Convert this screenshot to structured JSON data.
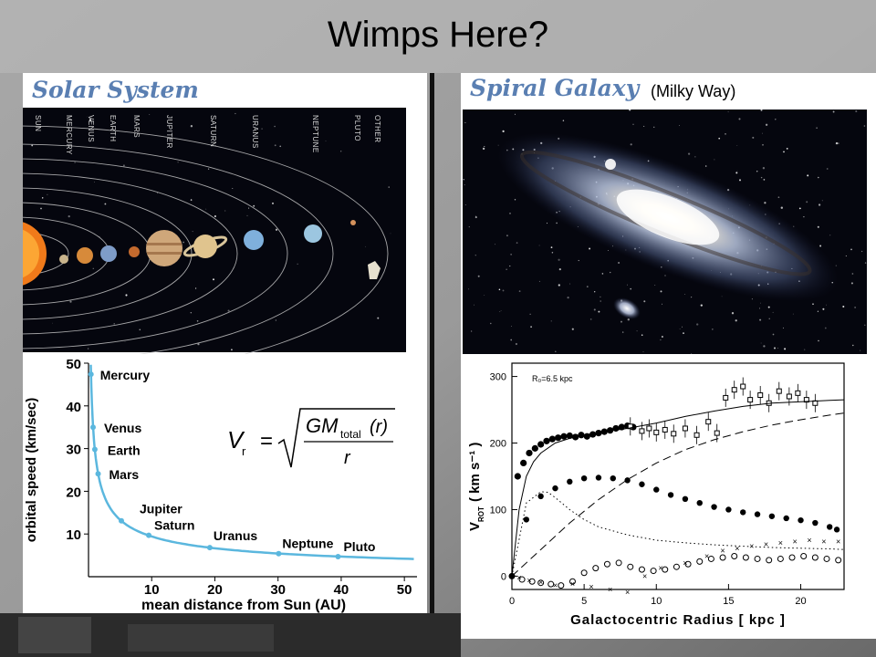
{
  "slide": {
    "title": "Wimps Here?"
  },
  "colors": {
    "accent": "#5a7fb2",
    "curve": "#5bb7de",
    "space": "#05060e"
  },
  "left": {
    "heading": "Solar System",
    "planet_labels": [
      "SUN",
      "MERCURY",
      "VENUS",
      "EARTH",
      "MARS",
      "JUPITER",
      "SATURN",
      "URANUS",
      "NEPTUNE",
      "PLUTO",
      "OTHER"
    ],
    "formula": {
      "v": "V",
      "sub_r": "r",
      "eq": "=",
      "gm": "GM",
      "total": "total",
      "arg": "(r)",
      "den": "r"
    }
  },
  "right": {
    "heading": "Spiral Galaxy",
    "subheading": "(Milky Way)"
  },
  "chart_data": [
    {
      "type": "line",
      "xlabel": "mean distance from Sun (AU)",
      "ylabel": "orbital speed (km/sec)",
      "xlim": [
        0,
        52
      ],
      "ylim": [
        0,
        50
      ],
      "xticks": [
        10,
        20,
        30,
        40,
        50
      ],
      "yticks": [
        10,
        20,
        30,
        40,
        50
      ],
      "grid": false,
      "points": [
        {
          "name": "Mercury",
          "x": 0.39,
          "y": 47.4
        },
        {
          "name": "Venus",
          "x": 0.72,
          "y": 35.0
        },
        {
          "name": "Earth",
          "x": 1.0,
          "y": 29.8
        },
        {
          "name": "Mars",
          "x": 1.52,
          "y": 24.1
        },
        {
          "name": "Jupiter",
          "x": 5.2,
          "y": 13.1
        },
        {
          "name": "Saturn",
          "x": 9.54,
          "y": 9.7
        },
        {
          "name": "Uranus",
          "x": 19.2,
          "y": 6.8
        },
        {
          "name": "Neptune",
          "x": 30.1,
          "y": 5.4
        },
        {
          "name": "Pluto",
          "x": 39.5,
          "y": 4.7
        }
      ]
    },
    {
      "type": "scatter",
      "xlabel": "Galactocentric Radius [ kpc ]",
      "ylabel": "V ROT ( km s⁻¹ )",
      "ylabel_parts": {
        "v": "V",
        "sub": "ROT",
        "rest": "( km s⁻¹ )"
      },
      "annotation": "R₀=6.5 kpc",
      "xlim": [
        0,
        23
      ],
      "ylim": [
        -20,
        320
      ],
      "xticks": [
        0,
        5,
        10,
        15,
        20
      ],
      "yticks": [
        0,
        100,
        200,
        300
      ],
      "series": [
        {
          "marker": "filled-circle",
          "x": [
            0,
            1,
            2,
            3,
            4,
            5,
            6,
            7,
            8,
            9,
            10,
            11,
            12,
            13,
            14,
            15,
            16,
            17,
            18,
            19,
            20,
            21,
            22,
            22.5
          ],
          "y": [
            0,
            85,
            120,
            132,
            142,
            147,
            148,
            147,
            144,
            138,
            130,
            122,
            116,
            110,
            104,
            100,
            96,
            93,
            90,
            87,
            84,
            80,
            74,
            70
          ]
        },
        {
          "marker": "filled-circle-dense",
          "x": [
            0.4,
            0.8,
            1.2,
            1.6,
            2.0,
            2.4,
            2.8,
            3.2,
            3.6,
            4.0,
            4.4,
            4.8,
            5.2,
            5.6,
            6.0,
            6.4,
            6.8,
            7.2,
            7.6,
            8.0,
            8.4
          ],
          "y": [
            150,
            170,
            185,
            192,
            198,
            203,
            206,
            208,
            210,
            211,
            209,
            212,
            210,
            213,
            215,
            217,
            219,
            222,
            224,
            226,
            224
          ]
        },
        {
          "marker": "open-square",
          "x": [
            8.2,
            9.0,
            9.5,
            10.0,
            10.6,
            11.2,
            12.0,
            12.8,
            13.6,
            14.2,
            14.8,
            15.4,
            16.0,
            16.5,
            17.2,
            17.8,
            18.5,
            19.2,
            19.8,
            20.4,
            21.0
          ],
          "y": [
            225,
            218,
            222,
            216,
            220,
            214,
            222,
            212,
            232,
            215,
            268,
            280,
            285,
            265,
            272,
            260,
            278,
            270,
            275,
            265,
            260
          ]
        },
        {
          "marker": "open-circle",
          "x": [
            0,
            0.7,
            1.4,
            2.0,
            2.7,
            3.4,
            4.2,
            5.0,
            5.8,
            6.6,
            7.4,
            8.2,
            9.0,
            9.8,
            10.6,
            11.4,
            12.2,
            13.0,
            13.8,
            14.6,
            15.4,
            16.2,
            17.0,
            17.8,
            18.6,
            19.4,
            20.2,
            21.0,
            21.8,
            22.6
          ],
          "y": [
            0,
            -5,
            -8,
            -10,
            -12,
            -14,
            -8,
            5,
            12,
            18,
            20,
            14,
            10,
            8,
            10,
            14,
            18,
            22,
            26,
            28,
            30,
            28,
            26,
            24,
            26,
            28,
            30,
            28,
            26,
            24
          ]
        },
        {
          "marker": "cross",
          "x": [
            0.5,
            1.2,
            2.0,
            3.0,
            4.2,
            5.5,
            6.8,
            8.0,
            9.2,
            10.3,
            12.0,
            13.5,
            14.6,
            15.6,
            16.6,
            17.6,
            18.6,
            19.6,
            20.6,
            21.6,
            22.6
          ],
          "y": [
            -2,
            -6,
            -9,
            -14,
            -12,
            -16,
            -20,
            -24,
            0,
            12,
            20,
            30,
            38,
            42,
            45,
            48,
            50,
            52,
            54,
            52,
            52
          ]
        },
        {
          "marker": "solid-line",
          "x": [
            0,
            0.5,
            1,
            1.5,
            2,
            3,
            4,
            5,
            6,
            8,
            10,
            12,
            14,
            16,
            18,
            20,
            22,
            23
          ],
          "y": [
            0,
            100,
            150,
            172,
            185,
            200,
            207,
            212,
            216,
            222,
            230,
            240,
            248,
            255,
            260,
            262,
            264,
            265
          ]
        },
        {
          "marker": "dashed-line",
          "x": [
            0,
            2,
            4,
            6,
            8,
            10,
            12,
            14,
            16,
            18,
            20,
            22,
            23
          ],
          "y": [
            0,
            40,
            80,
            115,
            145,
            170,
            190,
            205,
            217,
            227,
            235,
            242,
            245
          ]
        },
        {
          "marker": "dotted-line",
          "x": [
            0,
            1,
            2,
            2.5,
            3,
            4,
            5,
            6,
            8,
            10,
            12,
            14,
            16,
            18,
            20,
            22,
            23
          ],
          "y": [
            0,
            110,
            127,
            126,
            118,
            100,
            85,
            74,
            62,
            54,
            50,
            47,
            45,
            43,
            42,
            41,
            40
          ]
        }
      ]
    }
  ]
}
